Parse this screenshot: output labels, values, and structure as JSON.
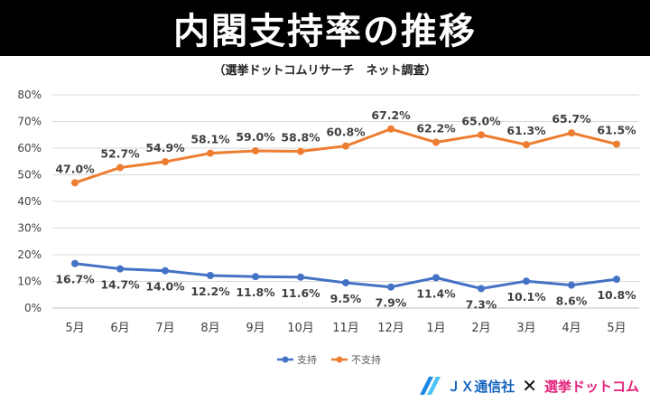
{
  "chart_data": {
    "type": "line",
    "title": "内閣支持率の推移",
    "subtitle": "（選挙ドットコムリサーチ　ネット調査）",
    "categories": [
      "5月",
      "6月",
      "7月",
      "8月",
      "9月",
      "10月",
      "11月",
      "12月",
      "1月",
      "2月",
      "3月",
      "4月",
      "5月"
    ],
    "series": [
      {
        "name": "支持",
        "color": "#4472c4",
        "values": [
          16.7,
          14.7,
          14.0,
          12.2,
          11.8,
          11.6,
          9.5,
          7.9,
          11.4,
          7.3,
          10.1,
          8.6,
          10.8
        ]
      },
      {
        "name": "不支持",
        "color": "#ed7d31",
        "values": [
          47.0,
          52.7,
          54.9,
          58.1,
          59.0,
          58.8,
          60.8,
          67.2,
          62.2,
          65.0,
          61.3,
          65.7,
          61.5
        ]
      }
    ],
    "ylim": [
      0,
      80
    ],
    "yticks": [
      "0%",
      "10%",
      "20%",
      "30%",
      "40%",
      "50%",
      "60%",
      "70%",
      "80%"
    ],
    "grid": true,
    "legend": "bottom-center"
  },
  "footer": {
    "jx_label": "ＪＸ通信社",
    "cross": "✕",
    "senkyo_label": "選挙ドットコム"
  }
}
